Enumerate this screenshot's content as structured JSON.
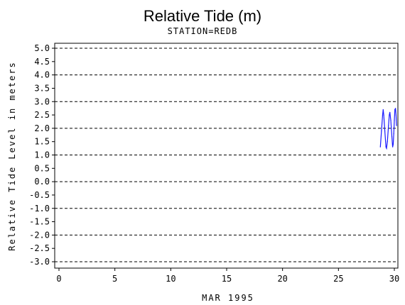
{
  "chart_data": {
    "type": "line",
    "title": "Relative Tide (m)",
    "subtitle": "STATION=REDB",
    "xlabel": "MAR 1995",
    "ylabel": "Relative Tide Level in meters",
    "xlim": [
      0,
      30
    ],
    "ylim": [
      -3.0,
      5.0
    ],
    "x_ticks": [
      0,
      5,
      10,
      15,
      20,
      25,
      30
    ],
    "y_ticks": [
      5.0,
      4.5,
      4.0,
      3.5,
      3.0,
      2.5,
      2.0,
      1.5,
      1.0,
      0.5,
      0.0,
      -0.5,
      -1.0,
      -1.5,
      -2.0,
      -2.5,
      -3.0
    ],
    "y_tick_labels": [
      "5.0",
      "4.5",
      "4.0",
      "3.5",
      "3.0",
      "2.5",
      "2.0",
      "1.5",
      "1.0",
      "0.5",
      "0.0",
      "-0.5",
      "-1.0",
      "-1.5",
      "-2.0",
      "-2.5",
      "-3.0"
    ],
    "grid": {
      "horizontal_dashed_at": [
        5.0,
        4.0,
        3.0,
        2.0,
        1.0,
        0.0,
        -1.0,
        -2.0,
        -3.0
      ]
    },
    "series": [
      {
        "color": "#1a1aff",
        "points": [
          [
            28.75,
            1.3
          ],
          [
            28.85,
            1.9
          ],
          [
            28.95,
            2.5
          ],
          [
            29.0,
            2.7
          ],
          [
            29.05,
            2.5
          ],
          [
            29.15,
            1.9
          ],
          [
            29.25,
            1.3
          ],
          [
            29.3,
            1.25
          ],
          [
            29.38,
            1.5
          ],
          [
            29.48,
            2.1
          ],
          [
            29.55,
            2.5
          ],
          [
            29.6,
            2.6
          ],
          [
            29.68,
            2.3
          ],
          [
            29.78,
            1.7
          ],
          [
            29.85,
            1.3
          ],
          [
            29.9,
            1.4
          ],
          [
            29.95,
            1.8
          ],
          [
            30.0,
            2.3
          ],
          [
            30.05,
            2.7
          ],
          [
            30.1,
            2.75
          ],
          [
            30.15,
            2.5
          ],
          [
            30.2,
            2.1
          ]
        ]
      }
    ]
  }
}
